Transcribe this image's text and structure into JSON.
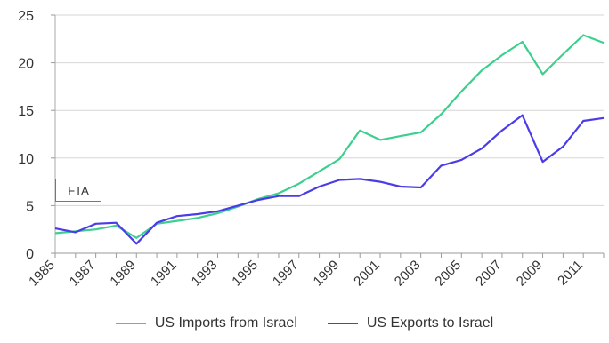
{
  "chart_data": {
    "type": "line",
    "x": [
      1985,
      1986,
      1987,
      1988,
      1989,
      1990,
      1991,
      1992,
      1993,
      1994,
      1995,
      1996,
      1997,
      1998,
      1999,
      2000,
      2001,
      2002,
      2003,
      2004,
      2005,
      2006,
      2007,
      2008,
      2009,
      2010,
      2011,
      2012
    ],
    "x_tick_labels": [
      "1985",
      "1987",
      "1989",
      "1991",
      "1993",
      "1995",
      "1997",
      "1999",
      "2001",
      "2003",
      "2005",
      "2007",
      "2009",
      "2011"
    ],
    "y_tick_labels": [
      "0",
      "5",
      "10",
      "15",
      "20",
      "25"
    ],
    "ylim": [
      0,
      25
    ],
    "grid": "horizontal",
    "legend_position": "bottom",
    "series": [
      {
        "name": "US Imports from Israel",
        "color": "#3ccf8e",
        "values": [
          2.1,
          2.3,
          2.5,
          2.9,
          1.6,
          3.1,
          3.4,
          3.7,
          4.2,
          4.9,
          5.7,
          6.3,
          7.3,
          8.6,
          9.9,
          12.9,
          11.9,
          12.3,
          12.7,
          14.6,
          17.0,
          19.2,
          20.8,
          22.2,
          18.8,
          20.9,
          22.9,
          22.1
        ]
      },
      {
        "name": "US Exports to Israel",
        "color": "#4b3be8",
        "values": [
          2.6,
          2.2,
          3.1,
          3.2,
          1.0,
          3.2,
          3.9,
          4.1,
          4.4,
          5.0,
          5.6,
          6.0,
          6.0,
          7.0,
          7.7,
          7.8,
          7.5,
          7.0,
          6.9,
          9.2,
          9.8,
          11.0,
          12.9,
          14.5,
          9.6,
          11.2,
          13.9,
          14.2
        ]
      }
    ],
    "annotation": "FTA"
  }
}
